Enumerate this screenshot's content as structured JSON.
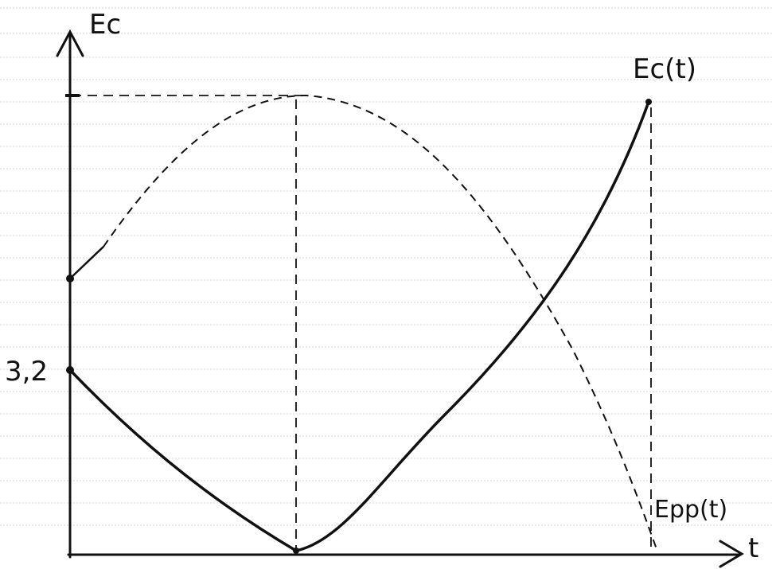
{
  "y_axis_label": "Ec",
  "x_axis_label": "t",
  "curves": [
    {
      "label": "Ec(t)"
    },
    {
      "label": "Epp(t)"
    }
  ],
  "start_value_label": "3,2"
}
